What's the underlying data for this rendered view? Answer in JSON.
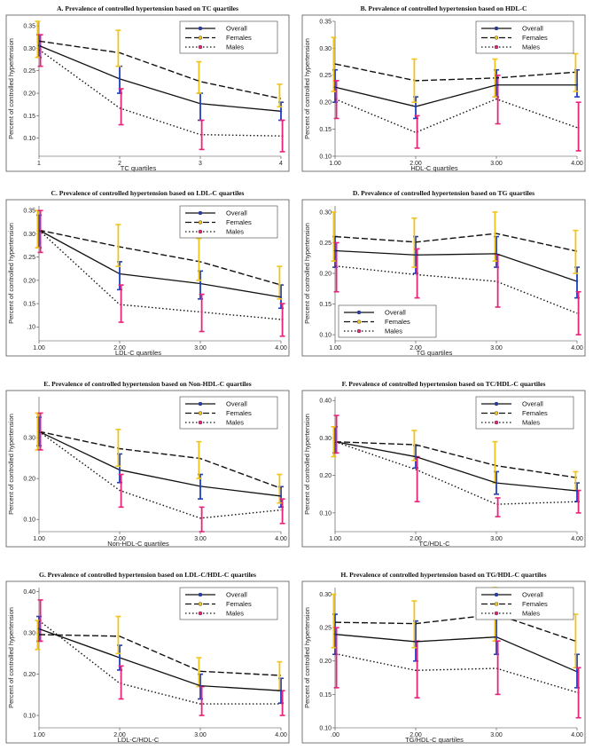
{
  "series_names": [
    "Overall",
    "Females",
    "Males"
  ],
  "colors": {
    "ci_overall": "#1f3fbf",
    "ci_females": "#f2c41a",
    "ci_males": "#e8237a",
    "line": "#111111",
    "frame": "#555555"
  },
  "chart_data": [
    {
      "id": "A",
      "type": "line",
      "title": "A. Prevalence of controlled hypertension based on TC quartiles",
      "xlabel": "TC quartiles",
      "ylabel": "Percent of controlled hypertension",
      "x_ticks": [
        "1",
        "2",
        "3",
        "4"
      ],
      "ylim": [
        0.06,
        0.36
      ],
      "y_ticks": [
        "0.10",
        "0.15",
        "0.20",
        "0.25",
        "0.30",
        "0.35"
      ],
      "legend_position": "top-right",
      "series": [
        {
          "name": "Overall",
          "values": [
            0.306,
            0.232,
            0.177,
            0.16
          ],
          "ci": [
            [
              0.28,
              0.33
            ],
            [
              0.2,
              0.26
            ],
            [
              0.14,
              0.2
            ],
            [
              0.14,
              0.18
            ]
          ]
        },
        {
          "name": "Females",
          "values": [
            0.316,
            0.29,
            0.226,
            0.188
          ],
          "ci": [
            [
              0.28,
              0.36
            ],
            [
              0.26,
              0.34
            ],
            [
              0.2,
              0.27
            ],
            [
              0.17,
              0.22
            ]
          ]
        },
        {
          "name": "Males",
          "values": [
            0.297,
            0.167,
            0.108,
            0.105
          ],
          "ci": [
            [
              0.26,
              0.33
            ],
            [
              0.13,
              0.21
            ],
            [
              0.075,
              0.14
            ],
            [
              0.07,
              0.14
            ]
          ]
        }
      ]
    },
    {
      "id": "B",
      "type": "line",
      "title": "B. Prevalence of controlled hypertension based on HDL-C",
      "xlabel": "HDL-C quartiles",
      "ylabel": "Percent of controlled hypertension",
      "x_ticks": [
        "1.00",
        "2.00",
        "3.00",
        "4.00"
      ],
      "ylim": [
        0.1,
        0.35
      ],
      "y_ticks": [
        "0.10",
        "0.15",
        "0.20",
        "0.25",
        "0.30",
        "0.35"
      ],
      "legend_position": "top-right",
      "series": [
        {
          "name": "Overall",
          "values": [
            0.228,
            0.192,
            0.232,
            0.232
          ],
          "ci": [
            [
              0.2,
              0.26
            ],
            [
              0.17,
              0.21
            ],
            [
              0.21,
              0.26
            ],
            [
              0.21,
              0.26
            ]
          ]
        },
        {
          "name": "Females",
          "values": [
            0.271,
            0.24,
            0.245,
            0.256
          ],
          "ci": [
            [
              0.22,
              0.32
            ],
            [
              0.2,
              0.28
            ],
            [
              0.21,
              0.28
            ],
            [
              0.22,
              0.29
            ]
          ]
        },
        {
          "name": "Males",
          "values": [
            0.206,
            0.144,
            0.206,
            0.153
          ],
          "ci": [
            [
              0.17,
              0.24
            ],
            [
              0.115,
              0.175
            ],
            [
              0.16,
              0.25
            ],
            [
              0.11,
              0.2
            ]
          ]
        }
      ]
    },
    {
      "id": "C",
      "type": "line",
      "title": "C. Prevalence of controlled hypertension based on LDL-C quartiles",
      "xlabel": "LDL-C quartiles",
      "ylabel": "Percent of controlled hypertension",
      "x_ticks": [
        "1.00",
        "2.00",
        "3.00",
        "4.00"
      ],
      "ylim": [
        0.07,
        0.36
      ],
      "y_ticks": [
        ".10",
        "0.15",
        "0.20",
        "0.25",
        "0.30",
        "0.35"
      ],
      "legend_position": "top-right",
      "series": [
        {
          "name": "Overall",
          "values": [
            0.308,
            0.214,
            0.193,
            0.164
          ],
          "ci": [
            [
              0.27,
              0.34
            ],
            [
              0.18,
              0.24
            ],
            [
              0.16,
              0.22
            ],
            [
              0.14,
              0.19
            ]
          ]
        },
        {
          "name": "Females",
          "values": [
            0.308,
            0.272,
            0.24,
            0.19
          ],
          "ci": [
            [
              0.27,
              0.35
            ],
            [
              0.23,
              0.32
            ],
            [
              0.2,
              0.29
            ],
            [
              0.16,
              0.23
            ]
          ]
        },
        {
          "name": "Males",
          "values": [
            0.308,
            0.148,
            0.132,
            0.116
          ],
          "ci": [
            [
              0.26,
              0.35
            ],
            [
              0.11,
              0.19
            ],
            [
              0.09,
              0.17
            ],
            [
              0.08,
              0.15
            ]
          ]
        }
      ]
    },
    {
      "id": "D",
      "type": "line",
      "title": "D. Prevalence of controlled hypertension based on TG quartiles",
      "xlabel": "TG quartiles",
      "ylabel": "Percent of controlled hypertension",
      "x_ticks": [
        "1.00",
        "2.00",
        "3.00",
        "4.00"
      ],
      "ylim": [
        0.09,
        0.31
      ],
      "y_ticks": [
        "0.10",
        "0.15",
        "0.20",
        "0.25",
        "0.30"
      ],
      "legend_position": "bottom-left",
      "series": [
        {
          "name": "Overall",
          "values": [
            0.237,
            0.23,
            0.232,
            0.187
          ],
          "ci": [
            [
              0.21,
              0.26
            ],
            [
              0.2,
              0.26
            ],
            [
              0.21,
              0.26
            ],
            [
              0.16,
              0.21
            ]
          ]
        },
        {
          "name": "Females",
          "values": [
            0.26,
            0.251,
            0.265,
            0.236
          ],
          "ci": [
            [
              0.22,
              0.3
            ],
            [
              0.21,
              0.29
            ],
            [
              0.22,
              0.3
            ],
            [
              0.2,
              0.27
            ]
          ]
        },
        {
          "name": "Males",
          "values": [
            0.212,
            0.198,
            0.187,
            0.135
          ],
          "ci": [
            [
              0.17,
              0.25
            ],
            [
              0.16,
              0.24
            ],
            [
              0.145,
              0.23
            ],
            [
              0.1,
              0.17
            ]
          ]
        }
      ]
    },
    {
      "id": "E",
      "type": "line",
      "title": "E. Prevalence of controlled hypertension based on Non-HDL-C quartiles",
      "xlabel": "Non-HDL-C quartiles",
      "ylabel": "Percent of controlled hypertension",
      "x_ticks": [
        "1.00",
        "2.00",
        "3.00",
        "4.00"
      ],
      "ylim": [
        0.07,
        0.4
      ],
      "y_ticks": [
        "0.10",
        "0.20",
        "0.30"
      ],
      "legend_position": "top-right",
      "series": [
        {
          "name": "Overall",
          "values": [
            0.315,
            0.221,
            0.181,
            0.157
          ],
          "ci": [
            [
              0.28,
              0.35
            ],
            [
              0.19,
              0.26
            ],
            [
              0.15,
              0.21
            ],
            [
              0.13,
              0.18
            ]
          ]
        },
        {
          "name": "Females",
          "values": [
            0.315,
            0.273,
            0.249,
            0.176
          ],
          "ci": [
            [
              0.27,
              0.36
            ],
            [
              0.23,
              0.32
            ],
            [
              0.2,
              0.29
            ],
            [
              0.14,
              0.21
            ]
          ]
        },
        {
          "name": "Males",
          "values": [
            0.315,
            0.171,
            0.103,
            0.123
          ],
          "ci": [
            [
              0.27,
              0.36
            ],
            [
              0.13,
              0.21
            ],
            [
              0.07,
              0.13
            ],
            [
              0.09,
              0.15
            ]
          ]
        }
      ]
    },
    {
      "id": "F",
      "type": "line",
      "title": "F. Prevalence of controlled hypertension based on TC/HDL-C quartiles",
      "xlabel": "TC/HDL-C",
      "ylabel": "Percent of controlled hypertension",
      "x_ticks": [
        "1.00",
        "2.00",
        "3.00",
        "4.00"
      ],
      "ylim": [
        0.05,
        0.41
      ],
      "y_ticks": [
        "0.10",
        "0.20",
        "0.30",
        "0.40"
      ],
      "legend_position": "top-right",
      "series": [
        {
          "name": "Overall",
          "values": [
            0.29,
            0.25,
            0.18,
            0.159
          ],
          "ci": [
            [
              0.26,
              0.33
            ],
            [
              0.22,
              0.28
            ],
            [
              0.15,
              0.21
            ],
            [
              0.13,
              0.18
            ]
          ]
        },
        {
          "name": "Females",
          "values": [
            0.29,
            0.282,
            0.226,
            0.194
          ],
          "ci": [
            [
              0.25,
              0.33
            ],
            [
              0.24,
              0.32
            ],
            [
              0.18,
              0.29
            ],
            [
              0.16,
              0.21
            ]
          ]
        },
        {
          "name": "Males",
          "values": [
            0.29,
            0.216,
            0.123,
            0.13
          ],
          "ci": [
            [
              0.26,
              0.36
            ],
            [
              0.13,
              0.25
            ],
            [
              0.09,
              0.14
            ],
            [
              0.1,
              0.16
            ]
          ]
        }
      ]
    },
    {
      "id": "G",
      "type": "line",
      "title": "G. Prevalence of controlled hypertension based on LDL-C/HDL-C quartiles",
      "xlabel": "LDL-C/HDL-C",
      "ylabel": "Percent of controlled hypertension",
      "x_ticks": [
        "1.00",
        "2.00",
        "3.00",
        "4.00"
      ],
      "ylim": [
        0.07,
        0.41
      ],
      "y_ticks": [
        "0.10",
        "0.20",
        "0.30",
        "0.40"
      ],
      "legend_position": "top-right",
      "series": [
        {
          "name": "Overall",
          "values": [
            0.31,
            0.24,
            0.172,
            0.16
          ],
          "ci": [
            [
              0.28,
              0.34
            ],
            [
              0.21,
              0.27
            ],
            [
              0.14,
              0.2
            ],
            [
              0.13,
              0.19
            ]
          ]
        },
        {
          "name": "Females",
          "values": [
            0.296,
            0.292,
            0.207,
            0.197
          ],
          "ci": [
            [
              0.26,
              0.33
            ],
            [
              0.25,
              0.34
            ],
            [
              0.17,
              0.24
            ],
            [
              0.16,
              0.23
            ]
          ]
        },
        {
          "name": "Males",
          "values": [
            0.33,
            0.178,
            0.128,
            0.128
          ],
          "ci": [
            [
              0.28,
              0.38
            ],
            [
              0.14,
              0.22
            ],
            [
              0.1,
              0.17
            ],
            [
              0.1,
              0.16
            ]
          ]
        }
      ]
    },
    {
      "id": "H",
      "type": "line",
      "title": "H. Prevalence of controlled hypertension based on TG/HDL-C quartiles",
      "xlabel": "TG/HDL-C quartiles",
      "ylabel": "Percent of controlled hypertension",
      "x_ticks": [
        ".00",
        "2.00",
        "3.00",
        "4.00"
      ],
      "ylim": [
        0.1,
        0.31
      ],
      "y_ticks": [
        "0.10",
        "0.15",
        "0.20",
        "0.25",
        "0.30"
      ],
      "legend_position": "top-right",
      "series": [
        {
          "name": "Overall",
          "values": [
            0.24,
            0.229,
            0.236,
            0.184
          ],
          "ci": [
            [
              0.21,
              0.27
            ],
            [
              0.2,
              0.26
            ],
            [
              0.21,
              0.27
            ],
            [
              0.16,
              0.21
            ]
          ]
        },
        {
          "name": "Females",
          "values": [
            0.258,
            0.256,
            0.27,
            0.229
          ],
          "ci": [
            [
              0.22,
              0.3
            ],
            [
              0.22,
              0.29
            ],
            [
              0.23,
              0.31
            ],
            [
              0.19,
              0.27
            ]
          ]
        },
        {
          "name": "Males",
          "values": [
            0.211,
            0.186,
            0.189,
            0.153
          ],
          "ci": [
            [
              0.16,
              0.25
            ],
            [
              0.145,
              0.23
            ],
            [
              0.15,
              0.23
            ],
            [
              0.115,
              0.19
            ]
          ]
        }
      ]
    }
  ]
}
